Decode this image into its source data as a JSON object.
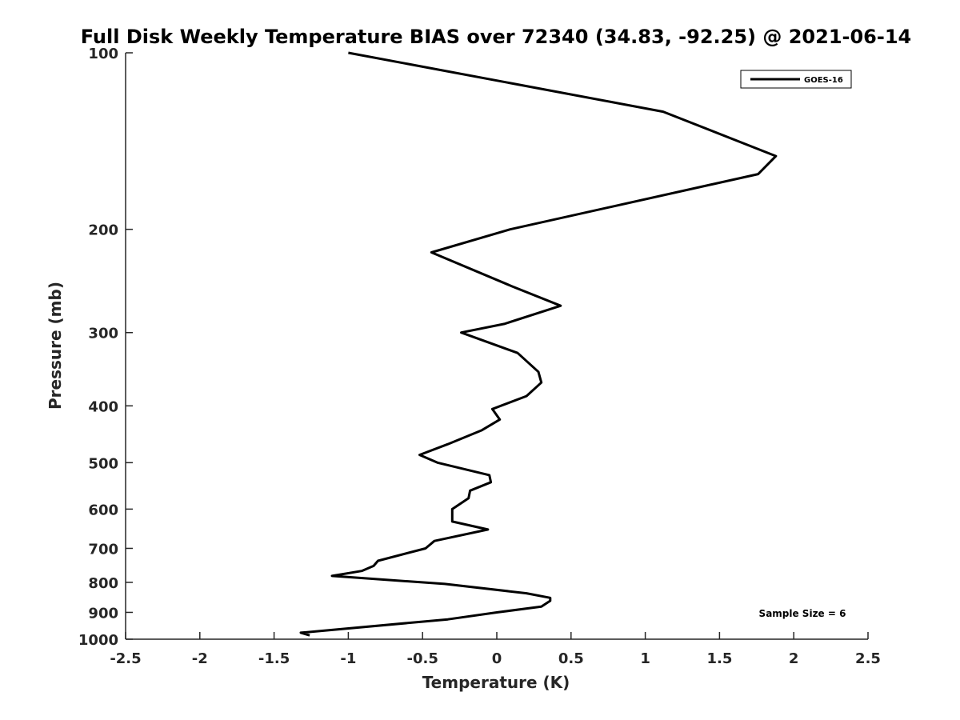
{
  "chart_data": {
    "type": "line",
    "title": "Full Disk Weekly Temperature BIAS over 72340 (34.83, -92.25) @ 2021-06-14",
    "xlabel": "Temperature (K)",
    "ylabel": "Pressure (mb)",
    "xlim": [
      -2.5,
      2.5
    ],
    "ylim": [
      1000,
      100
    ],
    "yscale": "log",
    "y_reversed": true,
    "x_ticks": [
      "-2.5",
      "-2",
      "-1.5",
      "-1",
      "-0.5",
      "0",
      "0.5",
      "1",
      "1.5",
      "2",
      "2.5"
    ],
    "y_ticks": [
      "100",
      "200",
      "300",
      "400",
      "500",
      "600",
      "700",
      "800",
      "900",
      "1000"
    ],
    "grid": false,
    "legend_position": "top-right",
    "series": [
      {
        "name": "GOES-16",
        "color": "#000000",
        "points": [
          [
            -1.0,
            100
          ],
          [
            1.12,
            126
          ],
          [
            1.88,
            150
          ],
          [
            1.76,
            161
          ],
          [
            0.09,
            200
          ],
          [
            -0.44,
            219
          ],
          [
            0.1,
            250
          ],
          [
            0.43,
            270
          ],
          [
            0.05,
            290
          ],
          [
            -0.24,
            300
          ],
          [
            0.14,
            325
          ],
          [
            0.28,
            350
          ],
          [
            0.3,
            365
          ],
          [
            0.2,
            385
          ],
          [
            -0.03,
            405
          ],
          [
            0.02,
            422
          ],
          [
            -0.1,
            440
          ],
          [
            -0.33,
            465
          ],
          [
            -0.52,
            485
          ],
          [
            -0.4,
            500
          ],
          [
            -0.05,
            525
          ],
          [
            -0.04,
            540
          ],
          [
            -0.18,
            558
          ],
          [
            -0.19,
            575
          ],
          [
            -0.3,
            600
          ],
          [
            -0.3,
            630
          ],
          [
            -0.06,
            650
          ],
          [
            -0.42,
            680
          ],
          [
            -0.48,
            700
          ],
          [
            -0.8,
            735
          ],
          [
            -0.83,
            750
          ],
          [
            -0.91,
            765
          ],
          [
            -1.11,
            780
          ],
          [
            -0.35,
            805
          ],
          [
            0.2,
            835
          ],
          [
            0.36,
            850
          ],
          [
            0.36,
            860
          ],
          [
            0.3,
            880
          ],
          [
            0.0,
            900
          ],
          [
            -0.33,
            925
          ],
          [
            -1.32,
            975
          ],
          [
            -1.26,
            985
          ]
        ]
      }
    ],
    "annotations": [
      "Sample Size = 6"
    ]
  }
}
